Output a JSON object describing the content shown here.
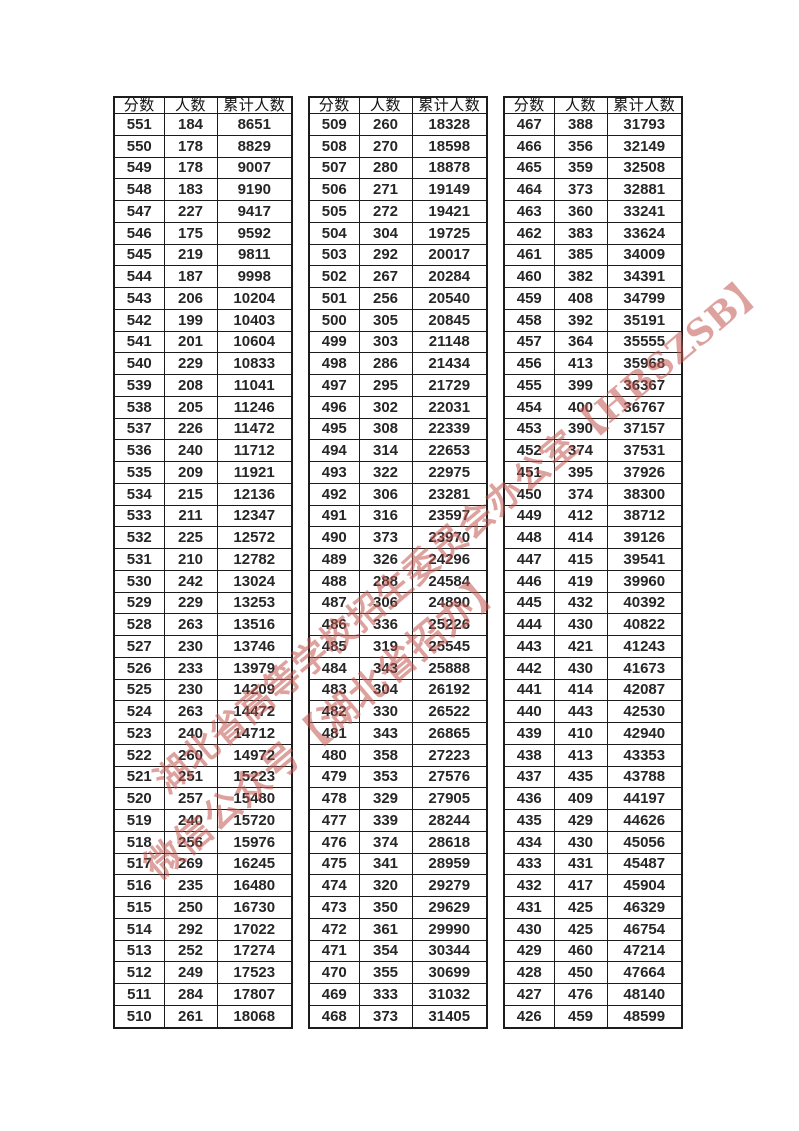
{
  "watermark": {
    "color": "#c4574f",
    "lines": [
      "湖北省高等学校招生委员会办公室【HBSZSB】",
      "微信公众号【湖北省招办】"
    ]
  },
  "tables": [
    {
      "headers": [
        "分数",
        "人数",
        "累计人数"
      ],
      "rows": [
        [
          551,
          184,
          8651
        ],
        [
          550,
          178,
          8829
        ],
        [
          549,
          178,
          9007
        ],
        [
          548,
          183,
          9190
        ],
        [
          547,
          227,
          9417
        ],
        [
          546,
          175,
          9592
        ],
        [
          545,
          219,
          9811
        ],
        [
          544,
          187,
          9998
        ],
        [
          543,
          206,
          10204
        ],
        [
          542,
          199,
          10403
        ],
        [
          541,
          201,
          10604
        ],
        [
          540,
          229,
          10833
        ],
        [
          539,
          208,
          11041
        ],
        [
          538,
          205,
          11246
        ],
        [
          537,
          226,
          11472
        ],
        [
          536,
          240,
          11712
        ],
        [
          535,
          209,
          11921
        ],
        [
          534,
          215,
          12136
        ],
        [
          533,
          211,
          12347
        ],
        [
          532,
          225,
          12572
        ],
        [
          531,
          210,
          12782
        ],
        [
          530,
          242,
          13024
        ],
        [
          529,
          229,
          13253
        ],
        [
          528,
          263,
          13516
        ],
        [
          527,
          230,
          13746
        ],
        [
          526,
          233,
          13979
        ],
        [
          525,
          230,
          14209
        ],
        [
          524,
          263,
          14472
        ],
        [
          523,
          240,
          14712
        ],
        [
          522,
          260,
          14972
        ],
        [
          521,
          251,
          15223
        ],
        [
          520,
          257,
          15480
        ],
        [
          519,
          240,
          15720
        ],
        [
          518,
          256,
          15976
        ],
        [
          517,
          269,
          16245
        ],
        [
          516,
          235,
          16480
        ],
        [
          515,
          250,
          16730
        ],
        [
          514,
          292,
          17022
        ],
        [
          513,
          252,
          17274
        ],
        [
          512,
          249,
          17523
        ],
        [
          511,
          284,
          17807
        ],
        [
          510,
          261,
          18068
        ]
      ]
    },
    {
      "headers": [
        "分数",
        "人数",
        "累计人数"
      ],
      "rows": [
        [
          509,
          260,
          18328
        ],
        [
          508,
          270,
          18598
        ],
        [
          507,
          280,
          18878
        ],
        [
          506,
          271,
          19149
        ],
        [
          505,
          272,
          19421
        ],
        [
          504,
          304,
          19725
        ],
        [
          503,
          292,
          20017
        ],
        [
          502,
          267,
          20284
        ],
        [
          501,
          256,
          20540
        ],
        [
          500,
          305,
          20845
        ],
        [
          499,
          303,
          21148
        ],
        [
          498,
          286,
          21434
        ],
        [
          497,
          295,
          21729
        ],
        [
          496,
          302,
          22031
        ],
        [
          495,
          308,
          22339
        ],
        [
          494,
          314,
          22653
        ],
        [
          493,
          322,
          22975
        ],
        [
          492,
          306,
          23281
        ],
        [
          491,
          316,
          23597
        ],
        [
          490,
          373,
          23970
        ],
        [
          489,
          326,
          24296
        ],
        [
          488,
          288,
          24584
        ],
        [
          487,
          306,
          24890
        ],
        [
          486,
          336,
          25226
        ],
        [
          485,
          319,
          25545
        ],
        [
          484,
          343,
          25888
        ],
        [
          483,
          304,
          26192
        ],
        [
          482,
          330,
          26522
        ],
        [
          481,
          343,
          26865
        ],
        [
          480,
          358,
          27223
        ],
        [
          479,
          353,
          27576
        ],
        [
          478,
          329,
          27905
        ],
        [
          477,
          339,
          28244
        ],
        [
          476,
          374,
          28618
        ],
        [
          475,
          341,
          28959
        ],
        [
          474,
          320,
          29279
        ],
        [
          473,
          350,
          29629
        ],
        [
          472,
          361,
          29990
        ],
        [
          471,
          354,
          30344
        ],
        [
          470,
          355,
          30699
        ],
        [
          469,
          333,
          31032
        ],
        [
          468,
          373,
          31405
        ]
      ]
    },
    {
      "headers": [
        "分数",
        "人数",
        "累计人数"
      ],
      "rows": [
        [
          467,
          388,
          31793
        ],
        [
          466,
          356,
          32149
        ],
        [
          465,
          359,
          32508
        ],
        [
          464,
          373,
          32881
        ],
        [
          463,
          360,
          33241
        ],
        [
          462,
          383,
          33624
        ],
        [
          461,
          385,
          34009
        ],
        [
          460,
          382,
          34391
        ],
        [
          459,
          408,
          34799
        ],
        [
          458,
          392,
          35191
        ],
        [
          457,
          364,
          35555
        ],
        [
          456,
          413,
          35968
        ],
        [
          455,
          399,
          36367
        ],
        [
          454,
          400,
          36767
        ],
        [
          453,
          390,
          37157
        ],
        [
          452,
          374,
          37531
        ],
        [
          451,
          395,
          37926
        ],
        [
          450,
          374,
          38300
        ],
        [
          449,
          412,
          38712
        ],
        [
          448,
          414,
          39126
        ],
        [
          447,
          415,
          39541
        ],
        [
          446,
          419,
          39960
        ],
        [
          445,
          432,
          40392
        ],
        [
          444,
          430,
          40822
        ],
        [
          443,
          421,
          41243
        ],
        [
          442,
          430,
          41673
        ],
        [
          441,
          414,
          42087
        ],
        [
          440,
          443,
          42530
        ],
        [
          439,
          410,
          42940
        ],
        [
          438,
          413,
          43353
        ],
        [
          437,
          435,
          43788
        ],
        [
          436,
          409,
          44197
        ],
        [
          435,
          429,
          44626
        ],
        [
          434,
          430,
          45056
        ],
        [
          433,
          431,
          45487
        ],
        [
          432,
          417,
          45904
        ],
        [
          431,
          425,
          46329
        ],
        [
          430,
          425,
          46754
        ],
        [
          429,
          460,
          47214
        ],
        [
          428,
          450,
          47664
        ],
        [
          427,
          476,
          48140
        ],
        [
          426,
          459,
          48599
        ]
      ]
    }
  ]
}
